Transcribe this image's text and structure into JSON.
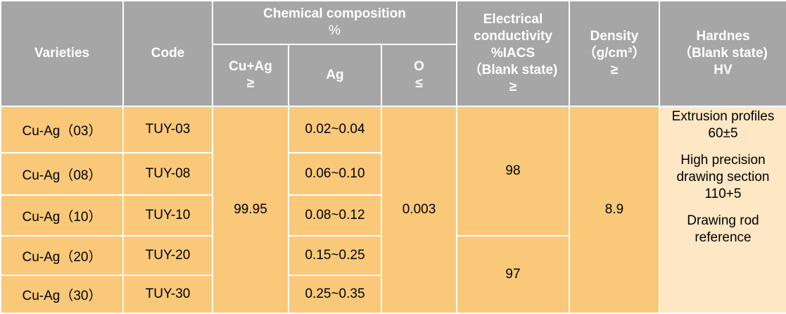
{
  "header": {
    "varieties": "Varieties",
    "code": "Code",
    "chemical_line1": "Chemical composition",
    "chemical_line2": "%",
    "cu_ag_line1": "Cu+Ag",
    "cu_ag_line2": "≥",
    "ag": "Ag",
    "o_line1": "O",
    "o_line2": "≤",
    "cond_line1": "Electrical",
    "cond_line2": "conductivity",
    "cond_line3": "%IACS",
    "cond_line4": "（Blank state)",
    "cond_line5": "≥",
    "density_line1": "Density",
    "density_line2": "（g/cm³）",
    "density_line3": "≥",
    "hard_line1": "Hardnes",
    "hard_line2": "（Blank state)",
    "hard_line3": "HV"
  },
  "rows": [
    {
      "variety": "Cu-Ag（03）",
      "code": "TUY-03",
      "ag": "0.02~0.04"
    },
    {
      "variety": "Cu-Ag（08）",
      "code": "TUY-08",
      "ag": "0.06~0.10"
    },
    {
      "variety": "Cu-Ag（10）",
      "code": "TUY-10",
      "ag": "0.08~0.12"
    },
    {
      "variety": "Cu-Ag（20）",
      "code": "TUY-20",
      "ag": "0.15~0.25"
    },
    {
      "variety": "Cu-Ag（30）",
      "code": "TUY-30",
      "ag": "0.25~0.35"
    }
  ],
  "merged": {
    "cu_ag": "99.95",
    "o": "0.003",
    "cond_a": "98",
    "cond_b": "97",
    "density": "8.9"
  },
  "hardness": {
    "extrusion_line1": "Extrusion profiles",
    "extrusion_line2": "60±5",
    "precision_line1": "High precision",
    "precision_line2": "drawing section",
    "precision_line3": "110+5",
    "rod_line1": "Drawing rod",
    "rod_line2": "reference"
  },
  "colors": {
    "header_bg": "#a6a6a6",
    "body_bg": "#f9c979",
    "hardness_bg": "#fde7c4"
  }
}
